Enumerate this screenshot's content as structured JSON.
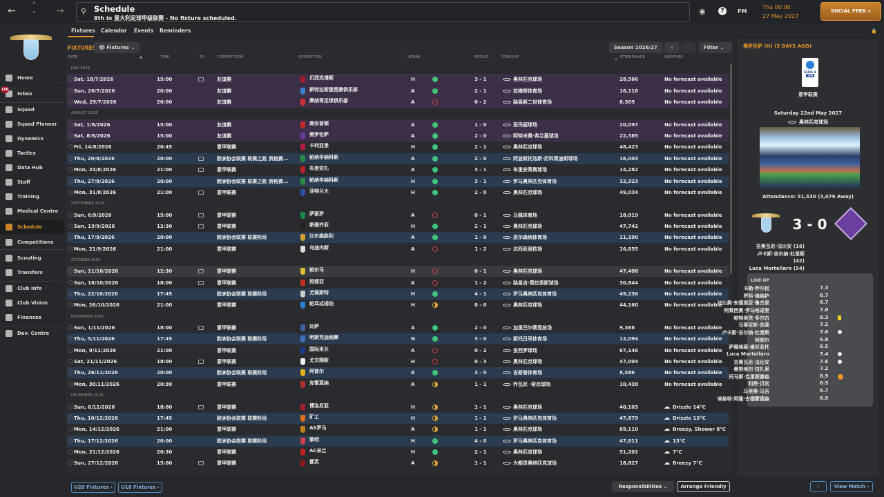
{
  "header": {
    "title": "Schedule",
    "subtitle": "8th in 意大利足球甲级联赛 - No fixture scheduled.",
    "time": "Thu 00:00",
    "date": "27 May 2027",
    "social_feed": "SOCIAL FEED »",
    "fm": "FM",
    "back": "←",
    "forward": "→",
    "up": "˄",
    "down": "˅"
  },
  "sidebar": {
    "inbox_badge": "186",
    "items": [
      "Home",
      "Inbox",
      "Squad",
      "Squad Planner",
      "Dynamics",
      "Tactics",
      "Data Hub",
      "Staff",
      "Training",
      "Medical Centre",
      "Schedule",
      "Competitions",
      "Scouting",
      "Transfers",
      "Club Info",
      "Club Vision",
      "Finances",
      "Dev. Centre"
    ],
    "active": "Schedule"
  },
  "tabs": [
    "Fixtures",
    "Calendar",
    "Events",
    "Reminders"
  ],
  "toolbar": {
    "section": "FIXTURES",
    "view": "Fixtures",
    "season": "Season 2026/27",
    "filter": "Filter"
  },
  "columns": {
    "date": "DATE",
    "sort": "▲",
    "time": "TIME",
    "tv": "TV",
    "competition": "COMPETITION",
    "opposition": "OPPOSITION",
    "venue": "VENUE",
    "result": "RESULT",
    "stadium": "STADIUM",
    "attendance": "ATTENDANCE",
    "weather": "WEATHER"
  },
  "colors": {
    "accent": "#e8952a",
    "win": "#3fc47e",
    "loss": "#c8404a",
    "draw": "#e0a93a",
    "friendly": "#3d2f48",
    "europe": "#2b3c50",
    "league": "#2a2b2e"
  },
  "rows": [
    {
      "section": "JULY 2026"
    },
    {
      "date": "Sat, 18/7/2026",
      "time": "15:00",
      "tv": true,
      "comp": "友谊赛",
      "opp": "贝西克塔斯",
      "venue": "H",
      "outcome": "win",
      "score": "3 - 1",
      "stadium": "奥林匹克球场",
      "att": "28,566",
      "weather": "No forecast available",
      "kind": "friendly",
      "crest": "#a01c2c"
    },
    {
      "date": "Sun, 26/7/2026",
      "time": "20:00",
      "comp": "友谊赛",
      "opp": "斯特拉斯堡竞赛俱乐部",
      "venue": "A",
      "outcome": "win",
      "score": "2 - 1",
      "stadium": "拉梅努体育场",
      "att": "16,116",
      "weather": "No forecast available",
      "kind": "friendly",
      "crest": "#3a7fc8"
    },
    {
      "date": "Wed, 29/7/2026",
      "time": "20:00",
      "comp": "友谊赛",
      "opp": "摩纳哥足球俱乐部",
      "venue": "A",
      "outcome": "loss",
      "score": "0 - 2",
      "stadium": "路易斯二世体育场",
      "att": "8,309",
      "weather": "No forecast available",
      "kind": "friendly",
      "crest": "#d0303a"
    },
    {
      "section": "AUGUST 2026"
    },
    {
      "date": "Sat, 1/8/2026",
      "time": "15:00",
      "comp": "友谊赛",
      "opp": "南安普顿",
      "venue": "A",
      "outcome": "win",
      "score": "1 - 0",
      "stadium": "圣玛丽球场",
      "att": "20,097",
      "weather": "No forecast available",
      "kind": "friendly",
      "crest": "#c42a2a"
    },
    {
      "date": "Sat, 8/8/2026",
      "time": "15:00",
      "comp": "友谊赛",
      "opp": "佛罗伦萨",
      "venue": "A",
      "outcome": "win",
      "score": "2 - 0",
      "stadium": "阿特米奥·弗兰基球场",
      "att": "22,585",
      "weather": "No forecast available",
      "kind": "friendly",
      "crest": "#6a3a9a"
    },
    {
      "date": "Fri, 14/8/2026",
      "time": "20:45",
      "comp": "意甲联赛",
      "opp": "卡利亚里",
      "venue": "H",
      "outcome": "win",
      "score": "2 - 1",
      "stadium": "奥林匹克球场",
      "att": "48,423",
      "weather": "No forecast available",
      "kind": "league",
      "crest": "#b02040"
    },
    {
      "date": "Thu, 20/8/2026",
      "time": "20:00",
      "tv": true,
      "comp": "欧洲协会联赛 联赛之路 资格赛...",
      "opp": "帕纳辛纳科斯",
      "venue": "A",
      "outcome": "win",
      "score": "2 - 0",
      "stadium": "阿波斯托洛斯·尼科莱迪斯球场",
      "att": "16,003",
      "weather": "No forecast available",
      "kind": "europe",
      "crest": "#2a8a4a"
    },
    {
      "date": "Mon, 24/8/2026",
      "time": "21:00",
      "tv": true,
      "comp": "意甲联赛",
      "opp": "布里安扎",
      "venue": "A",
      "outcome": "win",
      "score": "3 - 1",
      "stadium": "布里安蒂奥球场",
      "att": "14,282",
      "weather": "No forecast available",
      "kind": "league",
      "crest": "#c02030"
    },
    {
      "date": "Thu, 27/8/2026",
      "time": "20:00",
      "comp": "欧洲协会联赛 联赛之路 资格赛...",
      "opp": "帕纳辛纳科斯",
      "venue": "H",
      "outcome": "win",
      "score": "3 - 1",
      "stadium": "罗马奥林匹克体育场",
      "att": "32,323",
      "weather": "No forecast available",
      "kind": "europe",
      "crest": "#2a8a4a"
    },
    {
      "date": "Mon, 31/8/2026",
      "time": "21:00",
      "tv": true,
      "comp": "意甲联赛",
      "opp": "亚特兰大",
      "venue": "H",
      "outcome": "win",
      "score": "2 - 0",
      "stadium": "奥林匹克球场",
      "att": "49,034",
      "weather": "No forecast available",
      "kind": "league",
      "crest": "#3050a0"
    },
    {
      "section": "SEPTEMBER 2026"
    },
    {
      "date": "Sun, 6/9/2026",
      "time": "15:00",
      "tv": true,
      "comp": "意甲联赛",
      "opp": "萨索罗",
      "venue": "A",
      "outcome": "loss",
      "score": "0 - 1",
      "stadium": "马佩体育场",
      "att": "18,019",
      "weather": "No forecast available",
      "kind": "league",
      "crest": "#1a8a4a"
    },
    {
      "date": "Sun, 13/9/2026",
      "time": "12:30",
      "tv": true,
      "comp": "意甲联赛",
      "opp": "斯佩齐亚",
      "venue": "H",
      "outcome": "win",
      "score": "2 - 1",
      "stadium": "奥林匹克球场",
      "att": "47,742",
      "weather": "No forecast available",
      "kind": "league",
      "crest": "#222"
    },
    {
      "date": "Thu, 17/9/2026",
      "time": "20:00",
      "comp": "欧洲协会联赛 联赛阶段",
      "opp": "比尔森胜利",
      "venue": "A",
      "outcome": "win",
      "score": "1 - 0",
      "stadium": "皮尔森纳体育场",
      "att": "11,190",
      "weather": "No forecast available",
      "kind": "europe",
      "crest": "#d0a030"
    },
    {
      "date": "Mon, 21/9/2026",
      "time": "21:00",
      "comp": "意甲联赛",
      "opp": "乌迪内斯",
      "venue": "A",
      "outcome": "loss",
      "score": "1 - 2",
      "stadium": "达西亚竞技场",
      "att": "16,855",
      "weather": "No forecast available",
      "kind": "league",
      "crest": "#ddd"
    },
    {
      "section": "OCTOBER 2026"
    },
    {
      "date": "Sun, 11/10/2026",
      "time": "12:30",
      "tv": true,
      "comp": "意甲联赛",
      "opp": "帕尔马",
      "venue": "H",
      "outcome": "loss",
      "score": "0 - 1",
      "stadium": "奥林匹克球场",
      "att": "47,408",
      "weather": "No forecast available",
      "kind": "hover",
      "crest": "#e0c030"
    },
    {
      "date": "Sun, 18/10/2026",
      "time": "18:00",
      "tv": true,
      "comp": "意甲联赛",
      "opp": "热那亚",
      "venue": "A",
      "outcome": "loss",
      "score": "1 - 2",
      "stadium": "路易吉·费拉里斯球场",
      "att": "30,844",
      "weather": "No forecast available",
      "kind": "league",
      "crest": "#c03020"
    },
    {
      "date": "Thu, 22/10/2026",
      "time": "17:45",
      "comp": "欧洲协会联赛 联赛阶段",
      "opp": "尤佩斯特",
      "venue": "H",
      "outcome": "win",
      "score": "4 - 1",
      "stadium": "罗马奥林匹克体育场",
      "att": "49,236",
      "weather": "No forecast available",
      "kind": "europe",
      "crest": "#ccc"
    },
    {
      "date": "Mon, 26/10/2026",
      "time": "21:00",
      "comp": "意甲联赛",
      "opp": "帕耳忒诺珀",
      "venue": "H",
      "outcome": "draw",
      "score": "0 - 0",
      "stadium": "奥林匹克球场",
      "att": "44,160",
      "weather": "No forecast available",
      "kind": "league",
      "crest": "#2a80d0"
    },
    {
      "section": "NOVEMBER 2026"
    },
    {
      "date": "Sun, 1/11/2026",
      "time": "18:00",
      "tv": true,
      "comp": "意甲联赛",
      "opp": "比萨",
      "venue": "A",
      "outcome": "win",
      "score": "2 - 0",
      "stadium": "加里巴尔蒂竞技场",
      "att": "9,368",
      "weather": "No forecast available",
      "kind": "league",
      "crest": "#4060a0"
    },
    {
      "date": "Thu, 5/11/2026",
      "time": "17:45",
      "comp": "欧洲协会联赛 联赛阶段",
      "opp": "明斯克迪纳摩",
      "venue": "N",
      "outcome": "win",
      "score": "3 - 0",
      "stadium": "斯托日采体育场",
      "att": "12,094",
      "weather": "No forecast available",
      "kind": "europe",
      "crest": "#4070c0"
    },
    {
      "date": "Mon, 9/11/2026",
      "time": "21:00",
      "comp": "意甲联赛",
      "opp": "国际米兰",
      "venue": "A",
      "outcome": "loss",
      "score": "0 - 2",
      "stadium": "圣西罗球场",
      "att": "67,146",
      "weather": "No forecast available",
      "kind": "league",
      "crest": "#1a3a90"
    },
    {
      "date": "Sat, 21/11/2026",
      "time": "18:00",
      "tv": true,
      "comp": "意甲联赛",
      "opp": "尤文图斯",
      "venue": "H",
      "outcome": "loss",
      "score": "0 - 3",
      "stadium": "奥林匹克球场",
      "att": "47,004",
      "weather": "No forecast available",
      "kind": "league",
      "crest": "#eee"
    },
    {
      "date": "Thu, 26/11/2026",
      "time": "20:00",
      "comp": "欧洲协会联赛 联赛阶段",
      "opp": "阿普尔",
      "venue": "A",
      "outcome": "win",
      "score": "3 - 0",
      "stadium": "吉斯普体育场",
      "att": "8,586",
      "weather": "No forecast available",
      "kind": "europe",
      "crest": "#e0b020"
    },
    {
      "date": "Mon, 30/11/2026",
      "time": "20:30",
      "comp": "意甲联赛",
      "opp": "克雷莫纳",
      "venue": "A",
      "outcome": "draw",
      "score": "1 - 1",
      "stadium": "乔瓦尼 ·奇尼球场",
      "att": "10,438",
      "weather": "No forecast available",
      "kind": "league",
      "crest": "#b03030"
    },
    {
      "section": "DECEMBER 2026"
    },
    {
      "date": "Sun, 6/12/2026",
      "time": "18:00",
      "tv": true,
      "comp": "意甲联赛",
      "opp": "博洛尼亚",
      "venue": "H",
      "outcome": "draw",
      "score": "1 - 1",
      "stadium": "奥林匹克球场",
      "att": "40,103",
      "weather": "Drizzle 14°C",
      "wicon": "rain",
      "kind": "league",
      "crest": "#a02030"
    },
    {
      "date": "Thu, 10/12/2026",
      "time": "17:45",
      "comp": "欧洲协会联赛 联赛阶段",
      "opp": "矿工",
      "venue": "H",
      "outcome": "draw",
      "score": "1 - 1",
      "stadium": "罗马奥林匹克体育场",
      "att": "47,879",
      "weather": "Drizzle 13°C",
      "wicon": "rain",
      "kind": "europe",
      "crest": "#e07020"
    },
    {
      "date": "Mon, 14/12/2026",
      "time": "21:00",
      "comp": "意甲联赛",
      "opp": "AS罗马",
      "venue": "A",
      "outcome": "draw",
      "score": "1 - 1",
      "stadium": "奥林匹克球场",
      "att": "69,110",
      "weather": "Breezy, Shower 8°C",
      "wicon": "rain",
      "kind": "league",
      "crest": "#c08020"
    },
    {
      "date": "Thu, 17/12/2026",
      "time": "20:00",
      "comp": "欧洲协会联赛 联赛阶段",
      "opp": "黎明",
      "venue": "H",
      "outcome": "win",
      "score": "4 - 0",
      "stadium": "罗马奥林匹克体育场",
      "att": "47,811",
      "weather": "13°C",
      "wicon": "sun-cloud",
      "kind": "europe",
      "crest": "#d04050"
    },
    {
      "date": "Mon, 21/12/2026",
      "time": "20:30",
      "comp": "意甲联赛",
      "opp": "AC米兰",
      "venue": "H",
      "outcome": "win",
      "score": "2 - 1",
      "stadium": "奥林匹克球场",
      "att": "51,202",
      "weather": "7°C",
      "wicon": "cloud",
      "kind": "league",
      "crest": "#c02020"
    },
    {
      "date": "Sun, 27/12/2026",
      "time": "15:00",
      "tv": true,
      "comp": "意甲联赛",
      "opp": "都灵",
      "venue": "A",
      "outcome": "draw",
      "score": "1 - 1",
      "stadium": "大都灵奥林匹克球场",
      "att": "18,827",
      "weather": "Breezy 7°C",
      "wicon": "cloud",
      "kind": "league",
      "crest": "#8a1a20"
    }
  ],
  "last_match": {
    "title": "佛罗伦萨 (H) (5 DAYS AGO)",
    "competition": "意甲联赛",
    "logo_text": "SERIE A",
    "logo_sponsor": "TIM",
    "date": "Saturday 22nd May 2027",
    "stadium": "奥林匹克球场",
    "attendance": "Attendance: 51,530 (3,079 Away)",
    "score": "3 - 0",
    "scorers": [
      "吉奥瓦尼·法比安 (16)",
      "卢卡斯·吉尔纳·杜里斯",
      "(42)",
      "Luca Mortellaro (54)"
    ]
  },
  "lineup": {
    "title": "LINE-UP",
    "players": [
      {
        "name": "卡勒·乔尔松",
        "rating": "7.3"
      },
      {
        "name": "罗科·维纳护",
        "rating": "6.7"
      },
      {
        "name": "法比奥·安德里亚·鲁杰里",
        "rating": "6.7"
      },
      {
        "name": "阿莱西奥·罗马格诺里",
        "rating": "7.0"
      },
      {
        "name": "帕特里克·多尔古",
        "rating": "8.3",
        "icon": "yellow-card"
      },
      {
        "name": "马蒂亚斯·苏莱",
        "rating": "7.2"
      },
      {
        "name": "卢卡斯·吉尔纳·杜里斯",
        "rating": "7.6",
        "icon": "goal"
      },
      {
        "name": "阿图尔",
        "rating": "6.8"
      },
      {
        "name": "萨穆埃莱·维尼亚托",
        "rating": "6.5"
      },
      {
        "name": "Luca Mortellaro",
        "rating": "7.4",
        "icon": "goal"
      },
      {
        "name": "吉奥瓦尼·法比安",
        "rating": "7.6",
        "icon": "goal"
      },
      {
        "name": "曼努埃尔·拉扎里",
        "rating": "7.2"
      },
      {
        "name": "托马斯·克里斯滕森",
        "rating": "6.9",
        "icon": "sub"
      },
      {
        "name": "利昂·贝利",
        "rating": "6.5"
      },
      {
        "name": "马里奥·马吉",
        "rating": "6.7"
      },
      {
        "name": "埃格特·阿隆·古德蒙德森",
        "rating": "6.9"
      }
    ]
  },
  "footer": {
    "u20": "U20 Fixtures ›",
    "u18": "U18 Fixtures ›",
    "responsibilities": "Responsibilities ⌄",
    "arrange": "Arrange Friendly",
    "next": "›",
    "view_match": "View Match ›"
  }
}
